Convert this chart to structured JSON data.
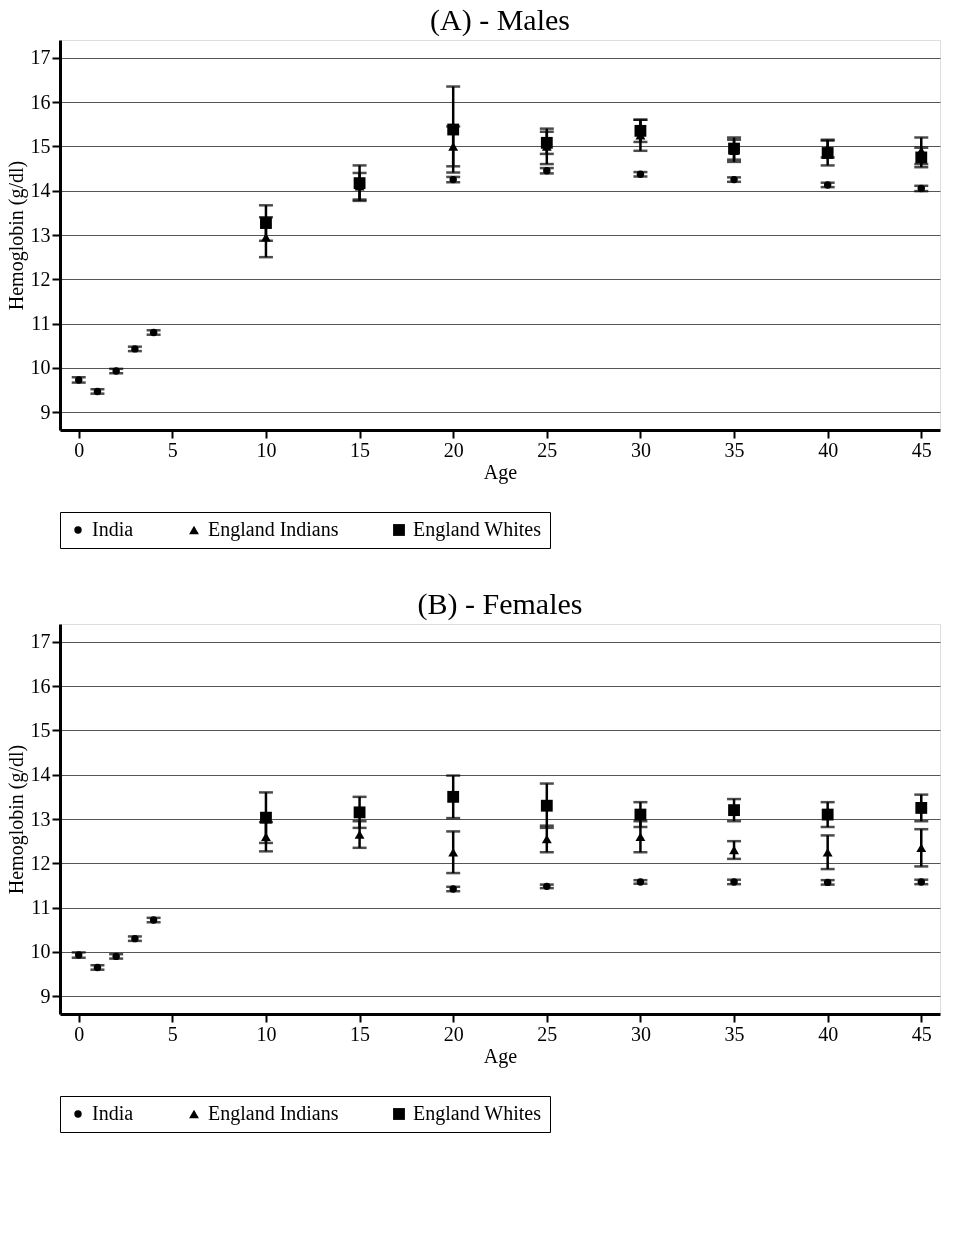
{
  "chart_data": [
    {
      "type": "scatter",
      "title": "(A) - Males",
      "xlabel": "Age",
      "ylabel": "Hemoglobin (g/dl)",
      "xlim": [
        -1,
        46
      ],
      "xticks": [
        0,
        5,
        10,
        15,
        20,
        25,
        30,
        35,
        40,
        45
      ],
      "ylim": [
        8.6,
        17.4
      ],
      "yticks": [
        9,
        10,
        11,
        12,
        13,
        14,
        15,
        16,
        17
      ],
      "grid": "y",
      "legend": "bottom",
      "series": [
        {
          "name": "India",
          "color": "#000000",
          "marker": "circle",
          "x": [
            0,
            1,
            2,
            3,
            4,
            20,
            25,
            30,
            35,
            40,
            45
          ],
          "values": [
            9.73,
            9.47,
            9.93,
            10.43,
            10.8,
            14.25,
            14.45,
            14.37,
            14.25,
            14.13,
            14.05
          ],
          "errors": [
            0.06,
            0.05,
            0.05,
            0.05,
            0.05,
            0.06,
            0.06,
            0.05,
            0.05,
            0.05,
            0.06
          ]
        },
        {
          "name": "England Indians",
          "color": "#000000",
          "marker": "triangle",
          "x": [
            10,
            15,
            20,
            25,
            30,
            35,
            40,
            45
          ],
          "values": [
            12.95,
            14.1,
            15.0,
            15.0,
            15.25,
            14.9,
            14.95,
            14.9
          ],
          "errors": [
            0.45,
            0.3,
            0.45,
            0.4,
            0.35,
            0.25,
            0.2,
            0.3
          ]
        },
        {
          "name": "England Whites",
          "color": "#000000",
          "marker": "square",
          "x": [
            10,
            15,
            20,
            25,
            30,
            35,
            40,
            45
          ],
          "values": [
            13.27,
            14.17,
            15.38,
            15.08,
            15.35,
            14.95,
            14.85,
            14.75
          ],
          "errors": [
            0.4,
            0.4,
            0.97,
            0.25,
            0.25,
            0.25,
            0.28,
            0.22
          ]
        }
      ]
    },
    {
      "type": "scatter",
      "title": "(B) - Females",
      "xlabel": "Age",
      "ylabel": "Hemoglobin (g/dl)",
      "xlim": [
        -1,
        46
      ],
      "xticks": [
        0,
        5,
        10,
        15,
        20,
        25,
        30,
        35,
        40,
        45
      ],
      "ylim": [
        8.6,
        17.4
      ],
      "yticks": [
        9,
        10,
        11,
        12,
        13,
        14,
        15,
        16,
        17
      ],
      "grid": "y",
      "legend": "bottom",
      "series": [
        {
          "name": "India",
          "color": "#000000",
          "marker": "circle",
          "x": [
            0,
            1,
            2,
            3,
            4,
            20,
            25,
            30,
            35,
            40,
            45
          ],
          "values": [
            9.93,
            9.65,
            9.9,
            10.3,
            10.72,
            11.42,
            11.48,
            11.58,
            11.58,
            11.57,
            11.58
          ],
          "errors": [
            0.06,
            0.05,
            0.05,
            0.05,
            0.05,
            0.05,
            0.04,
            0.04,
            0.05,
            0.05,
            0.05
          ]
        },
        {
          "name": "England Indians",
          "color": "#000000",
          "marker": "triangle",
          "x": [
            10,
            15,
            20,
            25,
            30,
            35,
            40,
            45
          ],
          "values": [
            12.6,
            12.65,
            12.25,
            12.55,
            12.6,
            12.3,
            12.25,
            12.35
          ],
          "errors": [
            0.33,
            0.3,
            0.47,
            0.3,
            0.35,
            0.2,
            0.38,
            0.42
          ]
        },
        {
          "name": "England Whites",
          "color": "#000000",
          "marker": "square",
          "x": [
            10,
            15,
            20,
            25,
            30,
            35,
            40,
            45
          ],
          "values": [
            13.03,
            13.15,
            13.5,
            13.3,
            13.1,
            13.2,
            13.1,
            13.25
          ],
          "errors": [
            0.57,
            0.35,
            0.48,
            0.5,
            0.28,
            0.25,
            0.28,
            0.3
          ]
        }
      ]
    }
  ]
}
